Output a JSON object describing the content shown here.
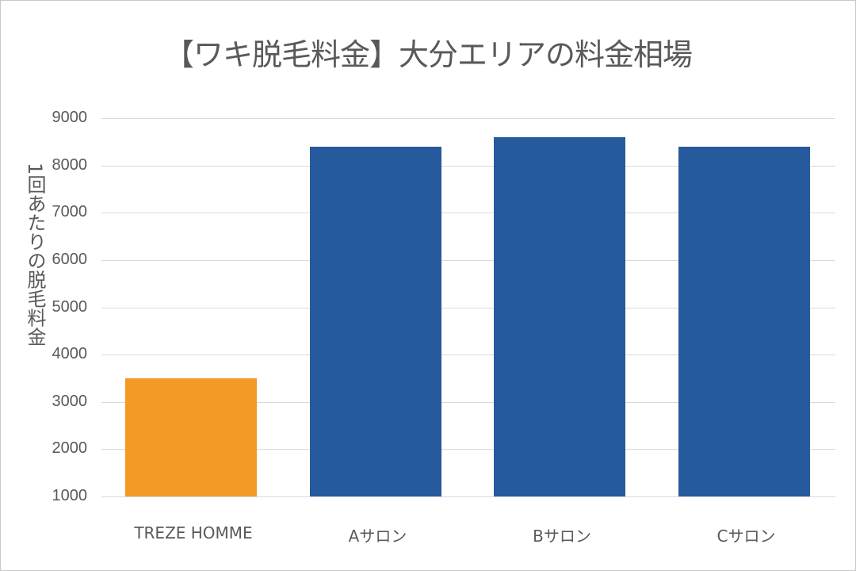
{
  "chart_data": {
    "type": "bar",
    "title": "【ワキ脱毛料金】大分エリアの料金相場",
    "xlabel": "",
    "ylabel": "1回あたりの脱毛料金",
    "ylim": [
      1000,
      9000
    ],
    "yticks": [
      9000,
      8000,
      7000,
      6000,
      5000,
      4000,
      3000,
      2000,
      1000
    ],
    "grid": true,
    "legend": null,
    "categories": [
      "TREZE HOMME",
      "Aサロン",
      "Bサロン",
      "Cサロン"
    ],
    "values": [
      3500,
      8400,
      8600,
      8400
    ],
    "colors": [
      "#F39A26",
      "#265A9C",
      "#265A9C",
      "#265A9C"
    ]
  }
}
